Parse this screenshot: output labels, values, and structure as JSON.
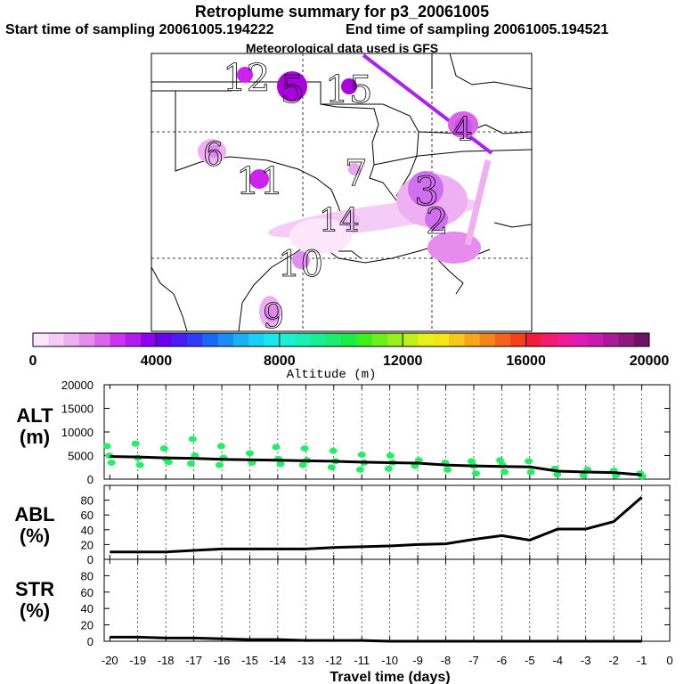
{
  "header": {
    "title": "Retroplume summary for p3_20061005",
    "start_label": "Start time of sampling 20061005.194222",
    "end_label": "End time of sampling 20061005.194521",
    "met_label": "Meteorological data used is GFS"
  },
  "colorbar": {
    "colors": [
      "#fbe6fb",
      "#f5ccf6",
      "#eeb0f2",
      "#e68ced",
      "#dc64ea",
      "#cc33ee",
      "#b31aee",
      "#8f00f0",
      "#6a00f0",
      "#4b1cf5",
      "#2e3df5",
      "#1a66f5",
      "#1a8cf5",
      "#1ab0f5",
      "#1ad0f5",
      "#1ae8ee",
      "#1af0d2",
      "#1af0b4",
      "#1aee92",
      "#1aee6c",
      "#1aee46",
      "#3cf01a",
      "#6af01a",
      "#96f01a",
      "#bff01a",
      "#e6f01a",
      "#f5e61a",
      "#f5c81a",
      "#f5a61a",
      "#f5841a",
      "#f5621a",
      "#f5401a",
      "#f51a3c",
      "#f51a6e",
      "#f01a96",
      "#e01ab4",
      "#c81ab0",
      "#aa1a96",
      "#8c1a7c",
      "#6e1462"
    ],
    "tick_labels": [
      "0",
      "4000",
      "8000",
      "12000",
      "16000",
      "20000"
    ],
    "xlabel": "Altitude (m)"
  },
  "map": {
    "plume_points": [
      {
        "label": "12",
        "dot": "#cc22ee"
      },
      {
        "label": "15",
        "dot": "#aa00dd"
      },
      {
        "label": "5",
        "dot": "#aa00dd"
      },
      {
        "label": "4",
        "dot": "#cc55ee"
      },
      {
        "label": "6",
        "dot": "#dd88ee"
      },
      {
        "label": "11",
        "dot": "#cc22ee"
      },
      {
        "label": "7",
        "dot": "#e8a8f0"
      },
      {
        "label": "3",
        "dot": "#d070f0"
      },
      {
        "label": "2",
        "dot": "#d070f0"
      },
      {
        "label": "14",
        "dot": "#f0c0f5"
      },
      {
        "label": "10",
        "dot": "#e090ee"
      },
      {
        "label": "9",
        "dot": "#dd88ee"
      }
    ]
  },
  "chart_data": [
    {
      "type": "scatter",
      "ylabel_line1": "ALT",
      "ylabel_line2": "(m)",
      "ylim": [
        0,
        20000
      ],
      "yticks": [
        "0",
        "5000",
        "10000",
        "15000",
        "20000"
      ],
      "median": {
        "x": [
          -20,
          -19,
          -18,
          -17,
          -16,
          -15,
          -14,
          -13,
          -12,
          -11,
          -10,
          -9,
          -8,
          -7,
          -6,
          -5,
          -4,
          -3,
          -2,
          -1
        ],
        "y": [
          4800,
          4700,
          4500,
          4400,
          4200,
          4100,
          4000,
          3900,
          3800,
          3600,
          3500,
          3400,
          3000,
          2800,
          2700,
          2600,
          1700,
          1500,
          1400,
          900
        ]
      },
      "points": {
        "x": [
          -20,
          -20,
          -20,
          -19,
          -19,
          -19,
          -18,
          -18,
          -18,
          -17,
          -17,
          -17,
          -16,
          -16,
          -16,
          -15,
          -15,
          -14,
          -14,
          -14,
          -13,
          -13,
          -13,
          -12,
          -12,
          -12,
          -11,
          -11,
          -11,
          -10,
          -10,
          -10,
          -9,
          -9,
          -8,
          -8,
          -7,
          -7,
          -7,
          -6,
          -6,
          -6,
          -5,
          -5,
          -4,
          -4,
          -3,
          -3,
          -2,
          -2,
          -1,
          -1
        ],
        "y": [
          7000,
          5000,
          3500,
          7500,
          4500,
          3000,
          6500,
          4200,
          3600,
          8500,
          5000,
          3300,
          7000,
          4500,
          3000,
          5500,
          3500,
          6800,
          4300,
          3200,
          6500,
          4000,
          3000,
          6000,
          3800,
          2500,
          5200,
          3500,
          2000,
          5000,
          3500,
          2200,
          4000,
          2800,
          3500,
          2000,
          3800,
          2800,
          1200,
          4000,
          3000,
          1500,
          3800,
          1500,
          2200,
          1000,
          2000,
          800,
          1800,
          800,
          1200,
          600
        ]
      },
      "points_color": "#22ee66"
    },
    {
      "type": "line",
      "ylabel_line1": "ABL",
      "ylabel_line2": "(%)",
      "ylim": [
        0,
        100
      ],
      "yticks": [
        "0",
        "20",
        "40",
        "60",
        "80"
      ],
      "x": [
        -20,
        -19,
        -18,
        -17,
        -16,
        -15,
        -14,
        -13,
        -12,
        -11,
        -10,
        -9,
        -8,
        -7,
        -6,
        -5,
        -4,
        -3,
        -2,
        -1
      ],
      "y": [
        10,
        10,
        10,
        12,
        14,
        14,
        14,
        14,
        16,
        17,
        18,
        20,
        21,
        27,
        32,
        26,
        41,
        41,
        51,
        84
      ]
    },
    {
      "type": "line",
      "ylabel_line1": "STR",
      "ylabel_line2": "(%)",
      "ylim": [
        0,
        100
      ],
      "yticks": [
        "0",
        "20",
        "40",
        "60",
        "80"
      ],
      "x": [
        -20,
        -19,
        -18,
        -17,
        -16,
        -15,
        -14,
        -13,
        -12,
        -11,
        -10,
        -9,
        -8,
        -7,
        -6,
        -5,
        -4,
        -3,
        -2,
        -1
      ],
      "y": [
        5,
        5,
        4,
        4,
        3,
        2,
        2,
        1,
        1,
        1,
        0,
        0,
        0,
        0,
        0,
        0,
        0,
        0,
        0,
        0
      ]
    }
  ],
  "xaxis": {
    "ticks": [
      "-20",
      "-19",
      "-18",
      "-17",
      "-16",
      "-15",
      "-14",
      "-13",
      "-12",
      "-11",
      "-10",
      "-9",
      "-8",
      "-7",
      "-6",
      "-5",
      "-4",
      "-3",
      "-2",
      "-1",
      "0"
    ],
    "label": "Travel time (days)"
  }
}
